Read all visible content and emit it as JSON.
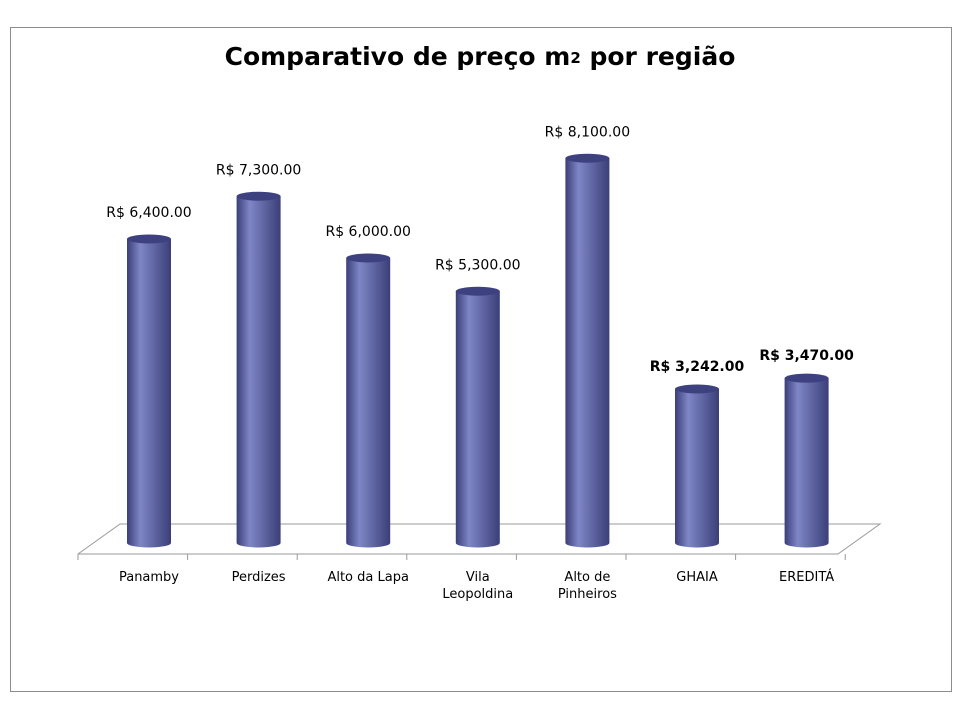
{
  "chart_data": {
    "type": "bar",
    "title": "Comparativo de preço m",
    "title_superscript": "2",
    "title_suffix": " por região",
    "categories": [
      [
        "Panamby"
      ],
      [
        "Perdizes"
      ],
      [
        "Alto da Lapa"
      ],
      [
        "Vila",
        "Leopoldina"
      ],
      [
        "Alto de",
        "Pinheiros"
      ],
      [
        "GHAIA"
      ],
      [
        "EREDITÁ"
      ]
    ],
    "values": [
      6400,
      7300,
      6000,
      5300,
      8100,
      3242,
      3470
    ],
    "data_labels": [
      "R$ 6,400.00",
      "R$ 7,300.00",
      "R$ 6,000.00",
      "R$ 5,300.00",
      "R$ 8,100.00",
      "R$ 3,242.00",
      "R$ 3,470.00"
    ],
    "bold_labels": [
      false,
      false,
      false,
      false,
      false,
      true,
      true
    ],
    "xlabel": "",
    "ylabel": "",
    "ylim": [
      0,
      9000
    ],
    "grid": false,
    "legend": "none",
    "colors": {
      "bar_body": "#4f5596",
      "bar_highlight": "#7f86c6",
      "bar_shadow": "#3a3f78",
      "bar_top": "#3d4180",
      "floor_line": "#9a9a9a"
    }
  }
}
